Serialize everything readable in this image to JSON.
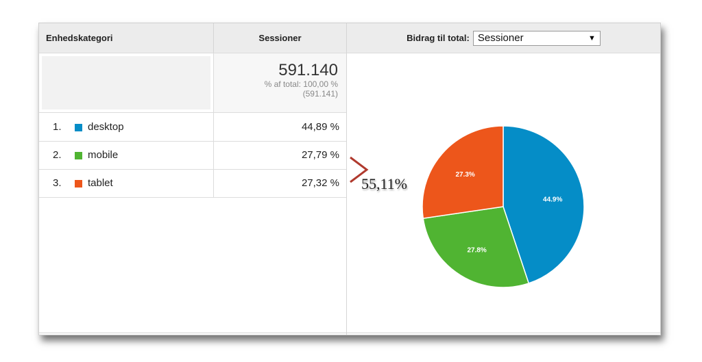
{
  "header": {
    "dimension_label": "Enhedskategori",
    "metric_label": "Sessioner",
    "contribution_label": "Bidrag til total:",
    "contribution_select": "Sessioner"
  },
  "totals": {
    "value": "591.140",
    "pct_line": "% af total: 100,00 %",
    "of_total": "(591.141)"
  },
  "rows": [
    {
      "index": "1.",
      "label": "desktop",
      "value": "44,89 %",
      "color": "#058dc7"
    },
    {
      "index": "2.",
      "label": "mobile",
      "value": "27,79 %",
      "color": "#50b432"
    },
    {
      "index": "3.",
      "label": "tablet",
      "value": "27,32 %",
      "color": "#ed561b"
    }
  ],
  "annotation": {
    "text": "55,11%",
    "arrow_color": "#b03a2e"
  },
  "chart_data": {
    "type": "pie",
    "categories": [
      "desktop",
      "mobile",
      "tablet"
    ],
    "values": [
      44.89,
      27.79,
      27.32
    ],
    "data_labels": [
      "44.9%",
      "27.8%",
      "27.3%"
    ],
    "colors": [
      "#058dc7",
      "#50b432",
      "#ed561b"
    ]
  }
}
